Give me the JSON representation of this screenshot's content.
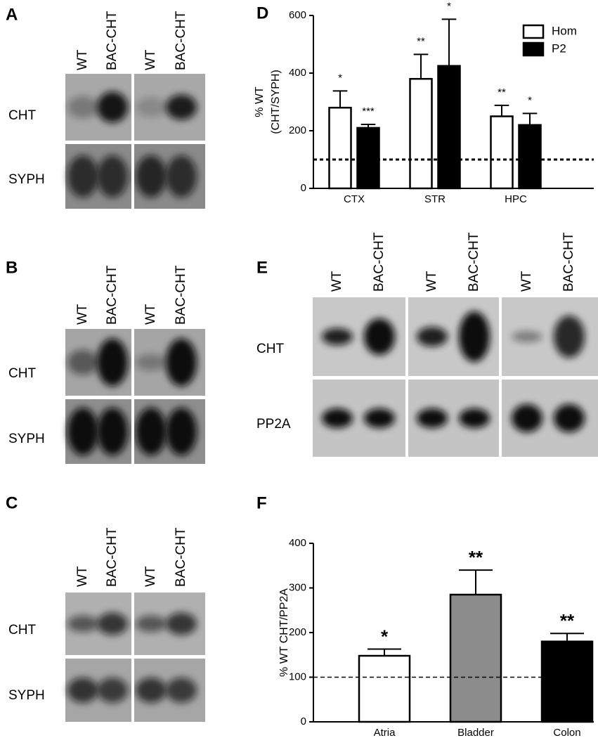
{
  "panels": [
    {
      "letter": "A",
      "lanes": [
        "WT",
        "BAC-CHT",
        "WT",
        "BAC-CHT"
      ],
      "rows": [
        "CHT",
        "SYPH"
      ]
    },
    {
      "letter": "B",
      "lanes": [
        "WT",
        "BAC-CHT",
        "WT",
        "BAC-CHT"
      ],
      "rows": [
        "CHT",
        "SYPH"
      ]
    },
    {
      "letter": "C",
      "lanes": [
        "WT",
        "BAC-CHT",
        "WT",
        "BAC-CHT"
      ],
      "rows": [
        "CHT",
        "SYPH"
      ]
    },
    {
      "letter": "E",
      "lanes": [
        "WT",
        "BAC-CHT",
        "WT",
        "BAC-CHT",
        "WT",
        "BAC-CHT"
      ],
      "rows": [
        "CHT",
        "PP2A"
      ]
    }
  ],
  "chart_data": [
    {
      "type": "bar",
      "letter": "D",
      "ylabel_lines": [
        "% WT",
        "(CHT/SYPH)"
      ],
      "categories": [
        "CTX",
        "STR",
        "HPC"
      ],
      "series": [
        {
          "name": "Hom",
          "color": "#ffffff",
          "values": [
            280,
            380,
            250
          ],
          "errors": [
            58,
            85,
            38
          ],
          "annotations": [
            "*",
            "**",
            "**"
          ]
        },
        {
          "name": "P2",
          "color": "#000000",
          "values": [
            210,
            425,
            220
          ],
          "errors": [
            12,
            162,
            40
          ],
          "annotations": [
            "***",
            "*",
            "*"
          ]
        }
      ],
      "ylim": [
        0,
        600
      ],
      "yticks": [
        0,
        200,
        400,
        600
      ],
      "reference_line": 100,
      "legend": "upper-right"
    },
    {
      "type": "bar",
      "letter": "F",
      "ylabel": "% WT CHT/PP2A",
      "categories": [
        "Atria",
        "Bladder",
        "Colon"
      ],
      "values": [
        148,
        285,
        180
      ],
      "errors": [
        15,
        55,
        18
      ],
      "annotations": [
        "*",
        "**",
        "**"
      ],
      "colors": [
        "#ffffff",
        "#8c8c8c",
        "#000000"
      ],
      "ylim": [
        0,
        400
      ],
      "yticks": [
        0,
        100,
        200,
        300,
        400
      ],
      "reference_line": 100
    }
  ]
}
